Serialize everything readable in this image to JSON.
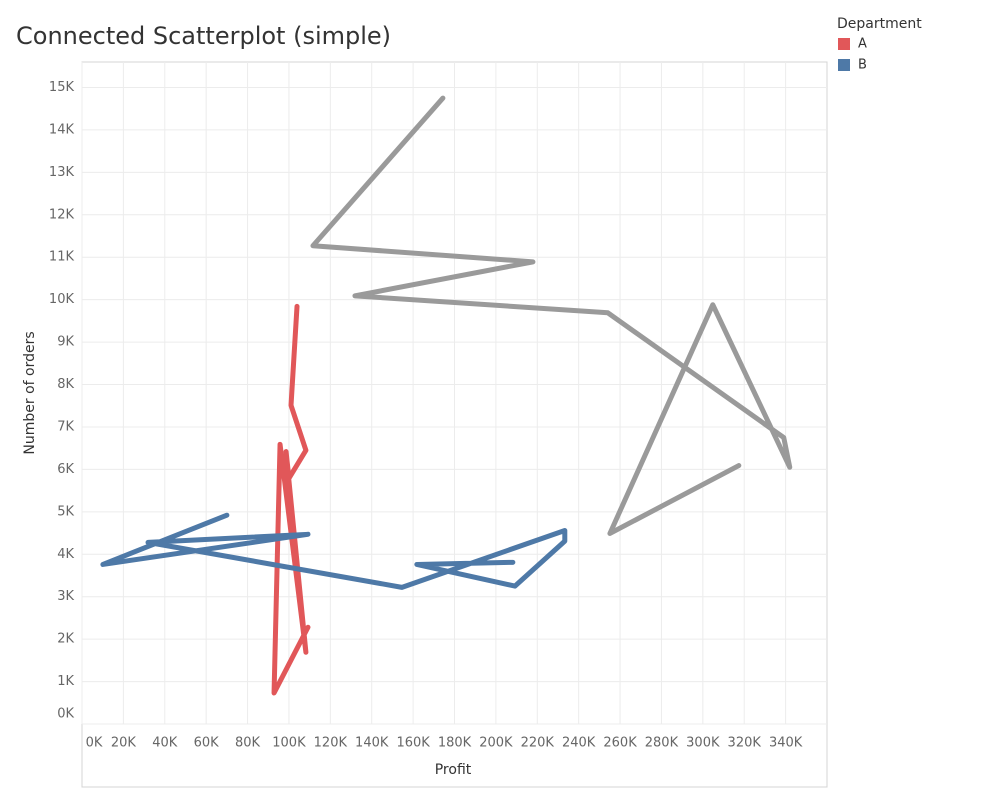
{
  "chart_data": {
    "type": "connected-scatter",
    "title": "Connected Scatterplot (simple)",
    "x_label": "Profit",
    "y_label": "Number of orders",
    "legend_title": "Department",
    "legend_position": "top-right",
    "grid": true,
    "xlim": [
      0,
      360000
    ],
    "ylim": [
      0,
      15600
    ],
    "xticks": [
      {
        "value": 0,
        "label": "0K"
      },
      {
        "value": 20000,
        "label": "20K"
      },
      {
        "value": 40000,
        "label": "40K"
      },
      {
        "value": 60000,
        "label": "60K"
      },
      {
        "value": 80000,
        "label": "80K"
      },
      {
        "value": 100000,
        "label": "100K"
      },
      {
        "value": 120000,
        "label": "120K"
      },
      {
        "value": 140000,
        "label": "140K"
      },
      {
        "value": 160000,
        "label": "160K"
      },
      {
        "value": 180000,
        "label": "180K"
      },
      {
        "value": 200000,
        "label": "200K"
      },
      {
        "value": 220000,
        "label": "220K"
      },
      {
        "value": 240000,
        "label": "240K"
      },
      {
        "value": 260000,
        "label": "260K"
      },
      {
        "value": 280000,
        "label": "280K"
      },
      {
        "value": 300000,
        "label": "300K"
      },
      {
        "value": 320000,
        "label": "320K"
      },
      {
        "value": 340000,
        "label": "340K"
      }
    ],
    "yticks": [
      {
        "value": 0,
        "label": "0K"
      },
      {
        "value": 1000,
        "label": "1K"
      },
      {
        "value": 2000,
        "label": "2K"
      },
      {
        "value": 3000,
        "label": "3K"
      },
      {
        "value": 4000,
        "label": "4K"
      },
      {
        "value": 5000,
        "label": "5K"
      },
      {
        "value": 6000,
        "label": "6K"
      },
      {
        "value": 7000,
        "label": "7K"
      },
      {
        "value": 8000,
        "label": "8K"
      },
      {
        "value": 9000,
        "label": "9K"
      },
      {
        "value": 10000,
        "label": "10K"
      },
      {
        "value": 11000,
        "label": "11K"
      },
      {
        "value": 12000,
        "label": "12K"
      },
      {
        "value": 13000,
        "label": "13K"
      },
      {
        "value": 14000,
        "label": "14K"
      },
      {
        "value": 15000,
        "label": "15K"
      }
    ],
    "series": [
      {
        "color": "#9a9a9a",
        "x": [
          174400,
          111600,
          217900,
          131900,
          254100,
          339100,
          342000,
          304800,
          255100,
          317400
        ],
        "values": [
          14750,
          11270,
          10890,
          10090,
          9690,
          6750,
          6050,
          9880,
          4490,
          6090
        ]
      },
      {
        "name": "A",
        "color": "#e15759",
        "x": [
          103900,
          101000,
          108200,
          100000,
          98600,
          108200,
          95700,
          92800,
          109200
        ],
        "values": [
          9840,
          7510,
          6450,
          5790,
          6420,
          1690,
          6590,
          730,
          2280
        ]
      },
      {
        "name": "B",
        "color": "#4e79a7",
        "x": [
          70000,
          10100,
          109200,
          31900,
          154600,
          233300,
          233300,
          209200,
          161800,
          208200
        ],
        "values": [
          4920,
          3760,
          4470,
          4280,
          3220,
          4560,
          4310,
          3250,
          3760,
          3810
        ]
      }
    ]
  }
}
